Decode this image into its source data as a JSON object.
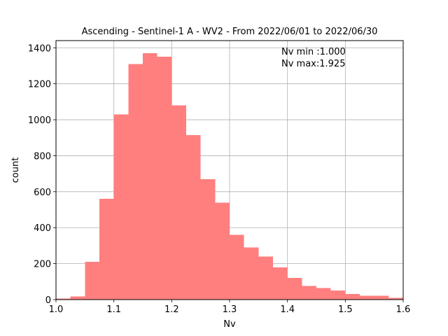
{
  "chart_data": {
    "type": "bar",
    "title": "Ascending - Sentinel-1 A - WV2 - From 2022/06/01 to 2022/06/30",
    "xlabel": "Nv",
    "ylabel": "count",
    "xlim": [
      1.0,
      1.6
    ],
    "ylim": [
      0,
      1440
    ],
    "grid": true,
    "bar_color": "#ff7f7f",
    "x_ticks": [
      "1.0",
      "1.1",
      "1.2",
      "1.3",
      "1.4",
      "1.5",
      "1.6"
    ],
    "y_ticks": [
      "0",
      "200",
      "400",
      "600",
      "800",
      "1000",
      "1200",
      "1400"
    ],
    "bins": [
      {
        "x0": 1.0,
        "x1": 1.025,
        "count": 5
      },
      {
        "x0": 1.025,
        "x1": 1.05,
        "count": 18
      },
      {
        "x0": 1.05,
        "x1": 1.075,
        "count": 210
      },
      {
        "x0": 1.075,
        "x1": 1.1,
        "count": 560
      },
      {
        "x0": 1.1,
        "x1": 1.125,
        "count": 1030
      },
      {
        "x0": 1.125,
        "x1": 1.15,
        "count": 1310
      },
      {
        "x0": 1.15,
        "x1": 1.175,
        "count": 1370
      },
      {
        "x0": 1.175,
        "x1": 1.2,
        "count": 1350
      },
      {
        "x0": 1.2,
        "x1": 1.225,
        "count": 1080
      },
      {
        "x0": 1.225,
        "x1": 1.25,
        "count": 915
      },
      {
        "x0": 1.25,
        "x1": 1.275,
        "count": 670
      },
      {
        "x0": 1.275,
        "x1": 1.3,
        "count": 540
      },
      {
        "x0": 1.3,
        "x1": 1.325,
        "count": 360
      },
      {
        "x0": 1.325,
        "x1": 1.35,
        "count": 290
      },
      {
        "x0": 1.35,
        "x1": 1.375,
        "count": 240
      },
      {
        "x0": 1.375,
        "x1": 1.4,
        "count": 180
      },
      {
        "x0": 1.4,
        "x1": 1.425,
        "count": 120
      },
      {
        "x0": 1.425,
        "x1": 1.45,
        "count": 75
      },
      {
        "x0": 1.45,
        "x1": 1.475,
        "count": 65
      },
      {
        "x0": 1.475,
        "x1": 1.5,
        "count": 50
      },
      {
        "x0": 1.5,
        "x1": 1.525,
        "count": 32
      },
      {
        "x0": 1.525,
        "x1": 1.55,
        "count": 22
      },
      {
        "x0": 1.55,
        "x1": 1.575,
        "count": 22
      },
      {
        "x0": 1.575,
        "x1": 1.6,
        "count": 10
      }
    ],
    "annotations": [
      "Nv min :1.000",
      "Nv max:1.925"
    ]
  }
}
